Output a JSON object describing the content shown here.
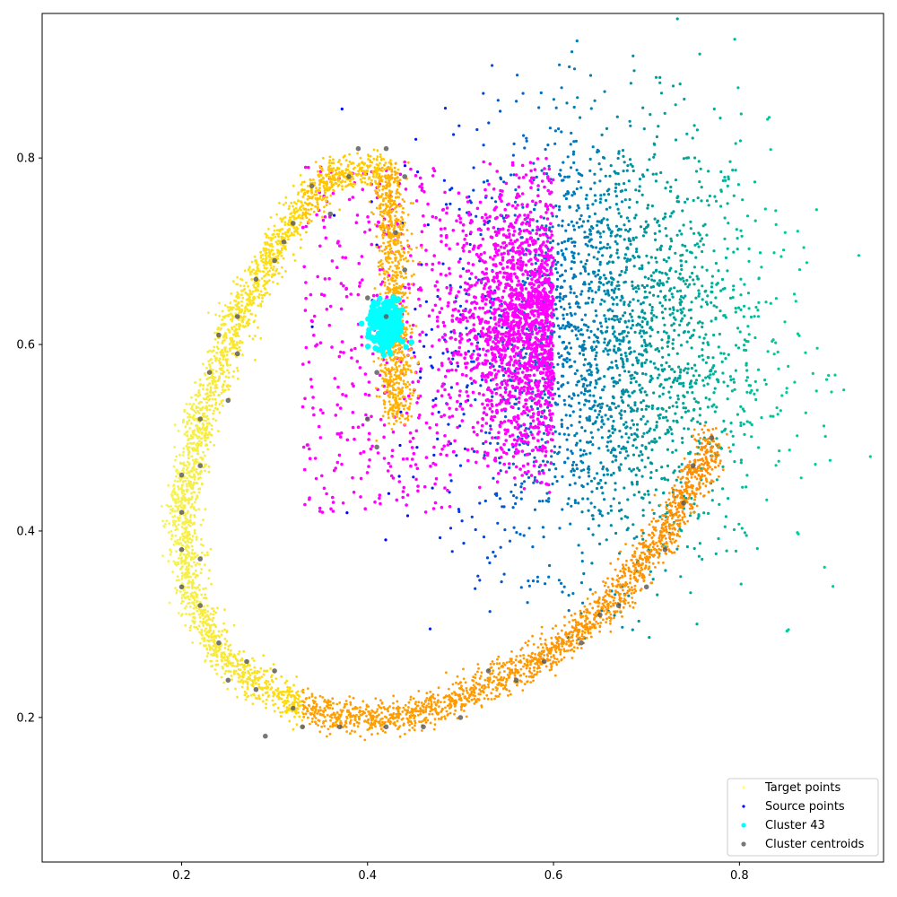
{
  "chart_data": {
    "type": "scatter",
    "title": "",
    "xlabel": "",
    "ylabel": "",
    "xlim": [
      0.05,
      0.955
    ],
    "ylim": [
      0.045,
      0.955
    ],
    "grid": false,
    "legend_position": "bottom-right",
    "x_ticks": [
      0.2,
      0.4,
      0.6,
      0.8
    ],
    "x_tick_labels": [
      "0.2",
      "0.4",
      "0.6",
      "0.8"
    ],
    "y_ticks": [
      0.2,
      0.4,
      0.6,
      0.8
    ],
    "y_tick_labels": [
      "0.2",
      "0.4",
      "0.6",
      "0.8"
    ],
    "series": [
      {
        "name": "Target points",
        "description": "spiral-shaped point cloud colored yellow to orange along the curve",
        "colors": [
          "#f5f55a",
          "#ffd700",
          "#ffa500",
          "#ff8c00"
        ],
        "points": [
          [
            0.43,
            0.52
          ],
          [
            0.43,
            0.7
          ],
          [
            0.42,
            0.79
          ],
          [
            0.36,
            0.78
          ],
          [
            0.31,
            0.72
          ],
          [
            0.26,
            0.63
          ],
          [
            0.22,
            0.52
          ],
          [
            0.2,
            0.42
          ],
          [
            0.21,
            0.33
          ],
          [
            0.24,
            0.27
          ],
          [
            0.29,
            0.23
          ],
          [
            0.36,
            0.2
          ],
          [
            0.44,
            0.2
          ],
          [
            0.52,
            0.23
          ],
          [
            0.6,
            0.27
          ],
          [
            0.67,
            0.33
          ],
          [
            0.72,
            0.4
          ],
          [
            0.76,
            0.47
          ],
          [
            0.77,
            0.5
          ]
        ]
      },
      {
        "name": "Source points",
        "description": "diffuse cloud colored blue to teal by x",
        "colors": [
          "#0000ff",
          "#0066cc",
          "#009999",
          "#00cc99"
        ],
        "x_range": [
          0.3,
          0.95
        ],
        "y_range": [
          0.28,
          0.95
        ],
        "center": [
          0.66,
          0.6
        ]
      },
      {
        "name": "Cluster 43",
        "color": "#00ffff",
        "center": [
          0.42,
          0.62
        ]
      },
      {
        "name": "Cluster centroids",
        "color": "#555555",
        "points": [
          [
            0.29,
            0.18
          ],
          [
            0.33,
            0.19
          ],
          [
            0.37,
            0.19
          ],
          [
            0.42,
            0.19
          ],
          [
            0.46,
            0.19
          ],
          [
            0.5,
            0.2
          ],
          [
            0.53,
            0.25
          ],
          [
            0.56,
            0.24
          ],
          [
            0.59,
            0.26
          ],
          [
            0.63,
            0.28
          ],
          [
            0.65,
            0.31
          ],
          [
            0.67,
            0.32
          ],
          [
            0.7,
            0.34
          ],
          [
            0.72,
            0.38
          ],
          [
            0.74,
            0.43
          ],
          [
            0.75,
            0.47
          ],
          [
            0.77,
            0.5
          ],
          [
            0.2,
            0.46
          ],
          [
            0.2,
            0.42
          ],
          [
            0.2,
            0.38
          ],
          [
            0.2,
            0.34
          ],
          [
            0.22,
            0.37
          ],
          [
            0.22,
            0.32
          ],
          [
            0.24,
            0.28
          ],
          [
            0.25,
            0.24
          ],
          [
            0.27,
            0.26
          ],
          [
            0.28,
            0.23
          ],
          [
            0.3,
            0.25
          ],
          [
            0.32,
            0.21
          ],
          [
            0.22,
            0.47
          ],
          [
            0.22,
            0.52
          ],
          [
            0.23,
            0.57
          ],
          [
            0.24,
            0.61
          ],
          [
            0.25,
            0.54
          ],
          [
            0.26,
            0.59
          ],
          [
            0.26,
            0.63
          ],
          [
            0.28,
            0.67
          ],
          [
            0.3,
            0.69
          ],
          [
            0.31,
            0.71
          ],
          [
            0.32,
            0.73
          ],
          [
            0.34,
            0.77
          ],
          [
            0.36,
            0.74
          ],
          [
            0.38,
            0.78
          ],
          [
            0.39,
            0.81
          ],
          [
            0.42,
            0.81
          ],
          [
            0.44,
            0.78
          ],
          [
            0.43,
            0.72
          ],
          [
            0.44,
            0.68
          ],
          [
            0.4,
            0.65
          ],
          [
            0.42,
            0.63
          ],
          [
            0.41,
            0.57
          ],
          [
            0.4,
            0.52
          ],
          [
            0.41,
            0.49
          ]
        ]
      }
    ]
  },
  "legend": {
    "items": [
      {
        "label": "Target points",
        "color": "#ffff66"
      },
      {
        "label": "Source points",
        "color": "#0000ff"
      },
      {
        "label": "Cluster 43",
        "color": "#00ffff"
      },
      {
        "label": "Cluster centroids",
        "color": "#555555"
      }
    ]
  }
}
